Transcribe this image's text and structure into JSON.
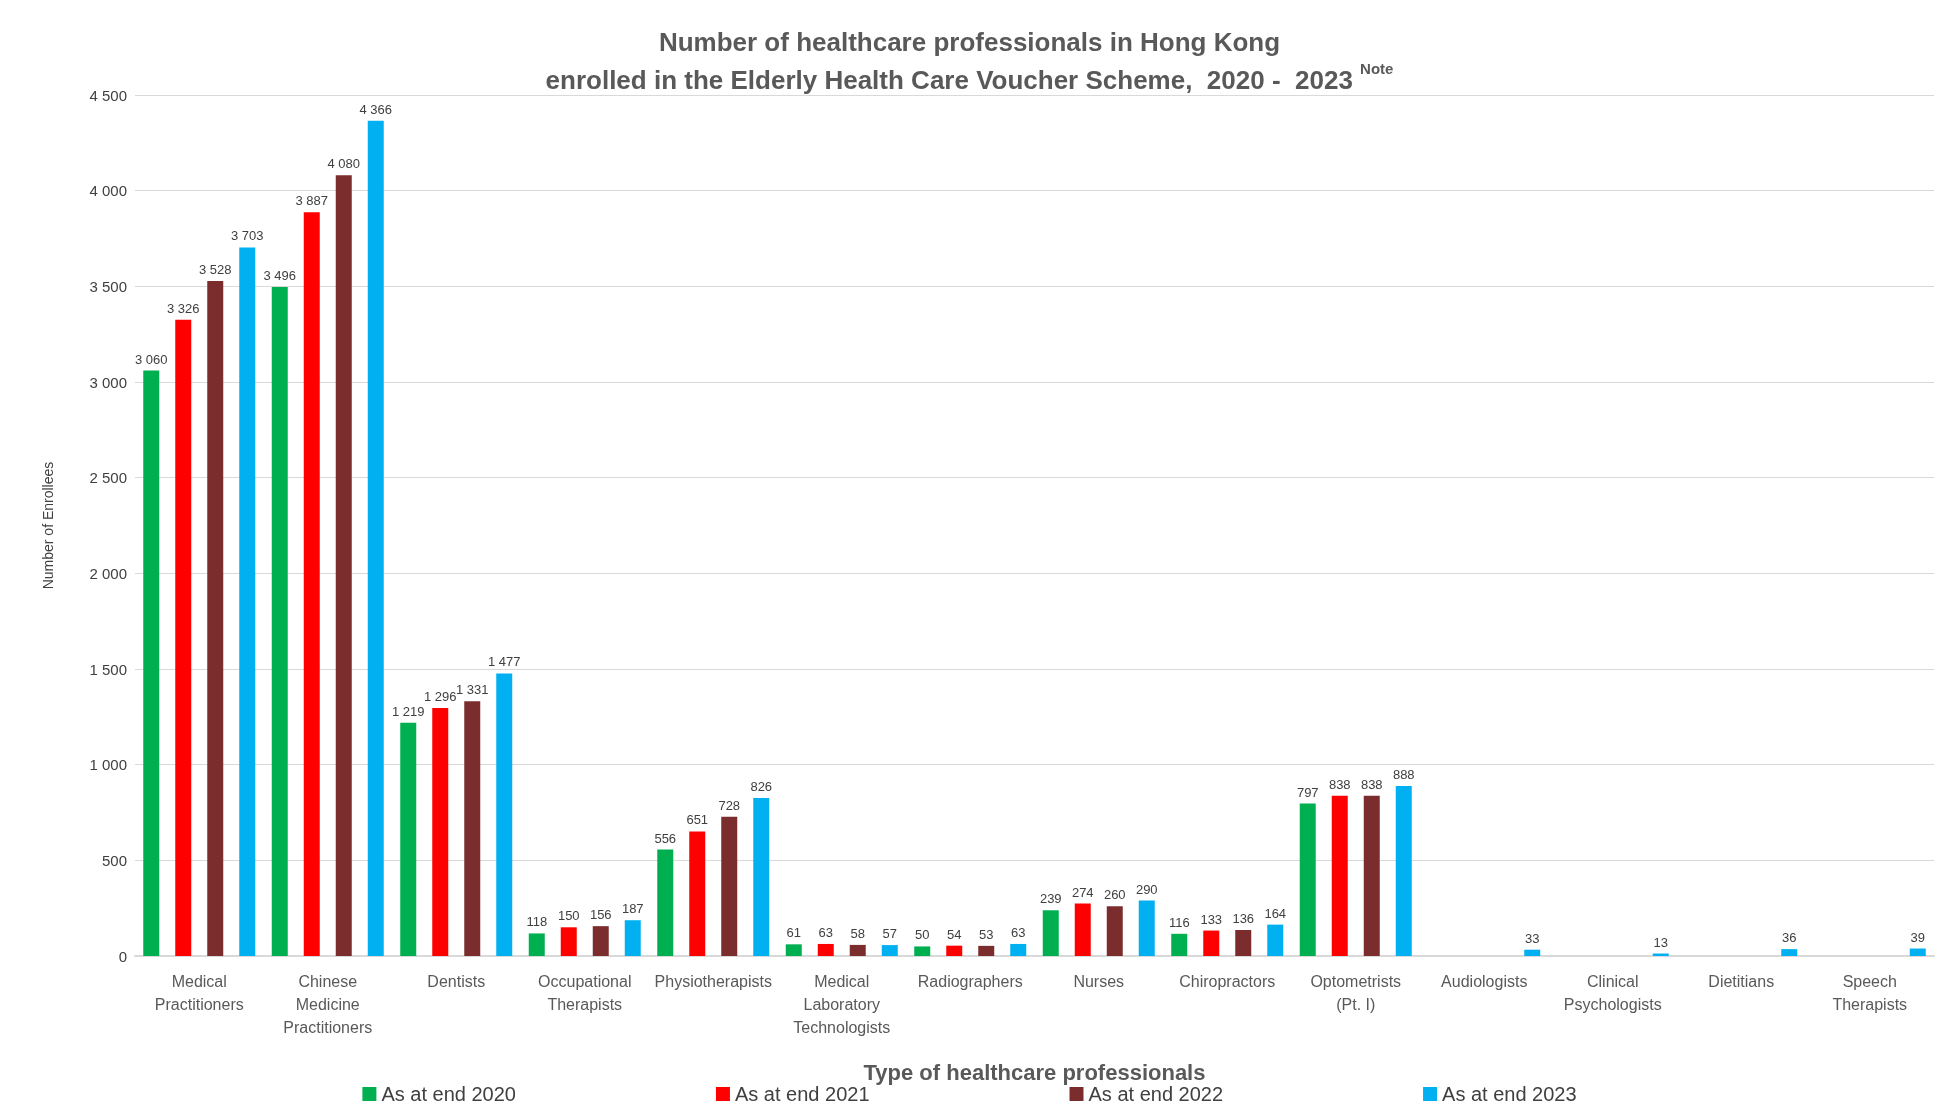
{
  "chart_data": {
    "type": "bar",
    "title": "Number of healthcare professionals in Hong Kong\nenrolled in the Elderly Health Care Voucher Scheme,  2020 -  2023 $^{Note}$",
    "xlabel": "Type of healthcare professionals",
    "ylabel": "Number of Enrollees",
    "categories": [
      "Medical\nPractitioners",
      "Chinese\nMedicine\nPractitioners",
      "Dentists",
      "Occupational\nTherapists",
      "Physiotherapists",
      "Medical\nLaboratory\nTechnologists",
      "Radiographers",
      "Nurses",
      "Chiropractors",
      "Optometrists\n(Pt. I)",
      "Audiologists",
      "Clinical\nPsychologists",
      "Dietitians",
      "Speech\nTherapists"
    ],
    "series": [
      {
        "name": "As at end 2020",
        "color": "#00b050",
        "values": [
          3060,
          3496,
          1219,
          118,
          556,
          61,
          50,
          239,
          116,
          797,
          null,
          null,
          null,
          null
        ],
        "value_labels": [
          "3 060",
          "3 496",
          "1 219",
          "118",
          "556",
          "61",
          "50",
          "239",
          "116",
          "797",
          null,
          null,
          null,
          null
        ]
      },
      {
        "name": "As at end 2021",
        "color": "#ff0000",
        "values": [
          3326,
          3887,
          1296,
          150,
          651,
          63,
          54,
          274,
          133,
          838,
          null,
          null,
          null,
          null
        ],
        "value_labels": [
          "3 326",
          "3 887",
          "1 296",
          "150",
          "651",
          "63",
          "54",
          "274",
          "133",
          "838",
          null,
          null,
          null,
          null
        ]
      },
      {
        "name": "As at end 2022",
        "color": "#7b2c2c",
        "values": [
          3528,
          4080,
          1331,
          156,
          728,
          58,
          53,
          260,
          136,
          838,
          null,
          null,
          null,
          null
        ],
        "value_labels": [
          "3 528",
          "4 080",
          "1 331",
          "156",
          "728",
          "58",
          "53",
          "260",
          "136",
          "838",
          null,
          null,
          null,
          null
        ]
      },
      {
        "name": "As at end 2023",
        "color": "#00b0f0",
        "values": [
          3703,
          4366,
          1477,
          187,
          826,
          57,
          63,
          290,
          164,
          888,
          33,
          13,
          36,
          39
        ],
        "value_labels": [
          "3 703",
          "4 366",
          "1 477",
          "187",
          "826",
          "57",
          "63",
          "290",
          "164",
          "888",
          "33",
          "13",
          "36",
          "39"
        ]
      }
    ],
    "ylim": [
      0,
      4500
    ],
    "yticks": [
      {
        "value": 0,
        "label": "0"
      },
      {
        "value": 500,
        "label": "500"
      },
      {
        "value": 1000,
        "label": "1 000"
      },
      {
        "value": 1500,
        "label": "1 500"
      },
      {
        "value": 2000,
        "label": "2 000"
      },
      {
        "value": 2500,
        "label": "2 500"
      },
      {
        "value": 3000,
        "label": "3 000"
      },
      {
        "value": 3500,
        "label": "3 500"
      },
      {
        "value": 4000,
        "label": "4 000"
      },
      {
        "value": 4500,
        "label": "4 500"
      }
    ],
    "grid": "y",
    "legend": "bottom"
  }
}
